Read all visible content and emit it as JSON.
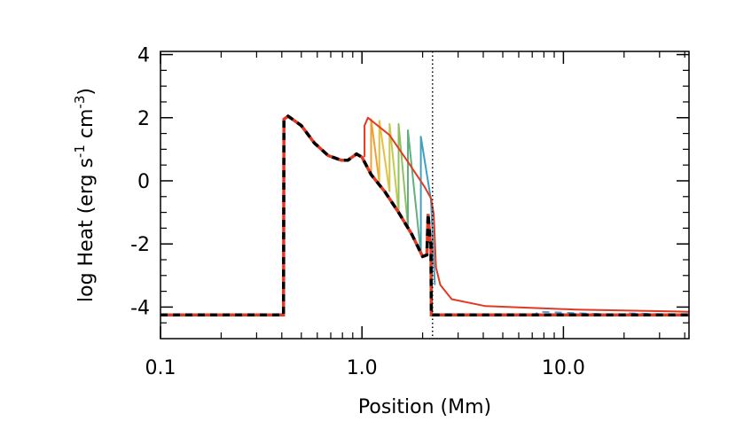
{
  "chart_data": {
    "type": "line",
    "xlabel": "Position (Mm)",
    "ylabel": [
      "log Heat (erg s",
      "-1",
      " cm",
      "-3",
      ")"
    ],
    "xlog": true,
    "xlim": [
      0.1,
      42
    ],
    "ylim": [
      -5,
      4.1
    ],
    "xticks": [
      0.1,
      {
        "value": 1,
        "label": "1.0"
      },
      {
        "value": 10,
        "label": "10.0"
      }
    ],
    "xminorticks": [
      0.2,
      0.3,
      0.4,
      0.5,
      0.6,
      0.7,
      0.8,
      0.9,
      2,
      3,
      4,
      5,
      6,
      7,
      8,
      9,
      20,
      30,
      40
    ],
    "yticks": [
      4,
      2,
      0,
      -2,
      -4
    ],
    "yminorticks": [
      -4.5,
      -3.5,
      -3,
      -2.5,
      -1.5,
      -1,
      -0.5,
      0.5,
      1,
      1.5,
      2.5,
      3,
      3.5
    ],
    "vline": 2.24,
    "series": [
      {
        "color": "#5a9fd4",
        "style": "dashed",
        "x": [
          2.22,
          7.2,
          7.5,
          20,
          21,
          42
        ],
        "values": [
          -4.25,
          -4.25,
          -4.15,
          -4.25,
          -4.2,
          -4.25
        ]
      },
      {
        "color": "#f0a030",
        "x": [
          1.11,
          1.11,
          1.22
        ],
        "values": [
          0.2,
          1.95,
          -0.05
        ]
      },
      {
        "color": "#e8c040",
        "x": [
          1.22,
          1.22,
          1.37
        ],
        "values": [
          -0.05,
          1.9,
          -0.35
        ]
      },
      {
        "color": "#c8c850",
        "x": [
          1.37,
          1.37,
          1.52
        ],
        "values": [
          -0.35,
          1.8,
          -1.0
        ]
      },
      {
        "color": "#90c060",
        "x": [
          1.52,
          1.52,
          1.69
        ],
        "values": [
          -1.0,
          1.8,
          -1.45
        ]
      },
      {
        "color": "#60b080",
        "x": [
          1.69,
          1.69,
          1.96
        ],
        "values": [
          -1.45,
          1.6,
          -2.3
        ]
      },
      {
        "color": "#40a0c0",
        "x": [
          1.96,
          1.96,
          2.2,
          2.3
        ],
        "values": [
          -2.3,
          1.4,
          -0.6,
          -3.3
        ]
      },
      {
        "color": "#e03a25",
        "x": [
          1.03,
          1.03,
          1.07,
          1.37,
          1.69,
          2.05,
          2.2,
          2.27,
          2.33,
          2.45,
          2.79,
          4.1,
          11.5,
          42
        ],
        "values": [
          0.75,
          1.75,
          2.0,
          1.45,
          0.6,
          -0.2,
          -0.55,
          -1.05,
          -2.75,
          -3.3,
          -3.75,
          -3.97,
          -4.08,
          -4.15
        ]
      },
      {
        "color": "#000000",
        "alt_color": "#e03a25",
        "style": "dashed",
        "x": [
          0.1,
          0.408,
          0.41,
          0.43,
          0.5,
          0.58,
          0.68,
          0.79,
          0.85,
          0.94,
          1.0,
          1.11,
          1.3,
          1.52,
          1.77,
          2.0,
          2.1,
          2.13,
          2.18,
          2.2,
          2.21,
          42
        ],
        "values": [
          -4.25,
          -4.25,
          1.95,
          2.05,
          1.75,
          1.2,
          0.8,
          0.65,
          0.65,
          0.85,
          0.75,
          0.2,
          -0.35,
          -1.0,
          -1.7,
          -2.4,
          -2.35,
          -1.05,
          -1.9,
          -2.0,
          -4.25,
          -4.25
        ]
      }
    ]
  }
}
